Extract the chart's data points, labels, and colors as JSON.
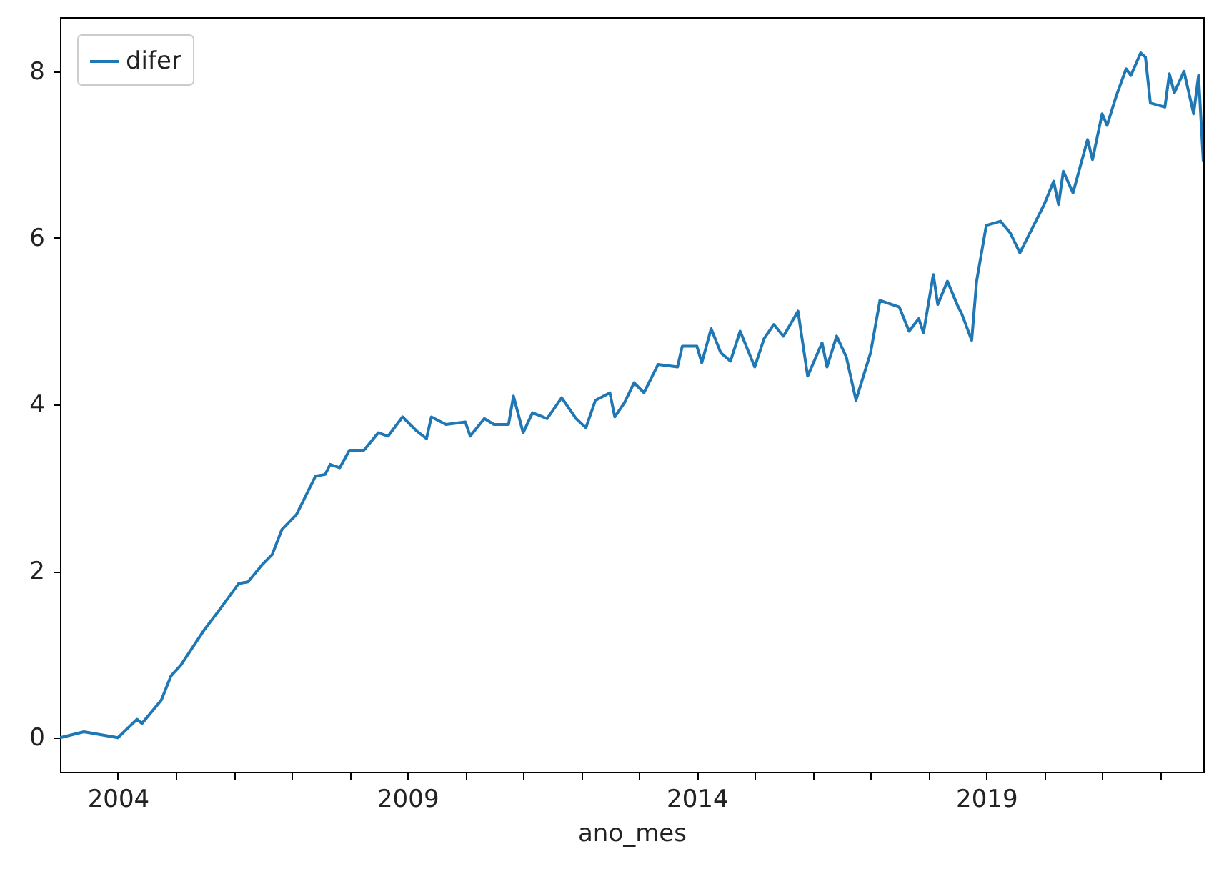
{
  "chart_data": {
    "type": "line",
    "xlabel": "ano_mes",
    "legend": "top left",
    "grid": false,
    "xlim": [
      "2003-01",
      "2022-10"
    ],
    "ylim": [
      -0.41,
      8.65
    ],
    "xticks": [
      {
        "value": "2004-01",
        "label": "2004"
      },
      {
        "value": "2005-01",
        "label": null
      },
      {
        "value": "2006-01",
        "label": null
      },
      {
        "value": "2007-01",
        "label": null
      },
      {
        "value": "2008-01",
        "label": null
      },
      {
        "value": "2009-01",
        "label": "2009"
      },
      {
        "value": "2010-01",
        "label": null
      },
      {
        "value": "2011-01",
        "label": null
      },
      {
        "value": "2012-01",
        "label": null
      },
      {
        "value": "2013-01",
        "label": null
      },
      {
        "value": "2014-01",
        "label": "2014"
      },
      {
        "value": "2015-01",
        "label": null
      },
      {
        "value": "2016-01",
        "label": null
      },
      {
        "value": "2017-01",
        "label": null
      },
      {
        "value": "2018-01",
        "label": null
      },
      {
        "value": "2019-01",
        "label": "2019"
      },
      {
        "value": "2020-01",
        "label": null
      },
      {
        "value": "2021-01",
        "label": null
      },
      {
        "value": "2022-01",
        "label": null
      }
    ],
    "yticks": [
      0,
      2,
      4,
      6,
      8
    ],
    "x": [
      "2003-01",
      "2003-06",
      "2004-01",
      "2004-05",
      "2004-06",
      "2004-10",
      "2004-12",
      "2005-02",
      "2005-07",
      "2005-10",
      "2006-02",
      "2006-04",
      "2006-07",
      "2006-09",
      "2006-11",
      "2007-02",
      "2007-06",
      "2007-08",
      "2007-09",
      "2007-11",
      "2008-01",
      "2008-04",
      "2008-07",
      "2008-09",
      "2008-12",
      "2009-03",
      "2009-05",
      "2009-06",
      "2009-09",
      "2010-01",
      "2010-02",
      "2010-05",
      "2010-07",
      "2010-10",
      "2010-11",
      "2011-01",
      "2011-03",
      "2011-06",
      "2011-09",
      "2011-12",
      "2012-02",
      "2012-04",
      "2012-07",
      "2012-08",
      "2012-10",
      "2012-12",
      "2013-02",
      "2013-05",
      "2013-09",
      "2013-10",
      "2014-01",
      "2014-02",
      "2014-04",
      "2014-06",
      "2014-08",
      "2014-10",
      "2015-01",
      "2015-03",
      "2015-05",
      "2015-07",
      "2015-10",
      "2015-12",
      "2016-03",
      "2016-04",
      "2016-06",
      "2016-08",
      "2016-10",
      "2017-01",
      "2017-03",
      "2017-07",
      "2017-09",
      "2017-11",
      "2017-12",
      "2018-02",
      "2018-03",
      "2018-05",
      "2018-07",
      "2018-08",
      "2018-10",
      "2018-11",
      "2019-01",
      "2019-04",
      "2019-06",
      "2019-08",
      "2020-01",
      "2020-03",
      "2020-04",
      "2020-05",
      "2020-07",
      "2020-10",
      "2020-11",
      "2021-01",
      "2021-02",
      "2021-04",
      "2021-06",
      "2021-07",
      "2021-09",
      "2021-10",
      "2021-11",
      "2022-02",
      "2022-03",
      "2022-04",
      "2022-06",
      "2022-08",
      "2022-09",
      "2022-10"
    ],
    "series": [
      {
        "name": "difer",
        "color": "#1f77b4",
        "values": [
          0.0,
          0.07,
          0.0,
          0.22,
          0.17,
          0.45,
          0.74,
          0.87,
          1.3,
          1.53,
          1.85,
          1.87,
          2.08,
          2.2,
          2.5,
          2.68,
          3.14,
          3.16,
          3.28,
          3.24,
          3.45,
          3.45,
          3.66,
          3.62,
          3.85,
          3.68,
          3.59,
          3.85,
          3.76,
          3.79,
          3.62,
          3.83,
          3.76,
          3.76,
          4.1,
          3.66,
          3.9,
          3.83,
          4.08,
          3.83,
          3.72,
          4.05,
          4.14,
          3.85,
          4.02,
          4.26,
          4.14,
          4.48,
          4.45,
          4.7,
          4.7,
          4.5,
          4.91,
          4.62,
          4.52,
          4.88,
          4.45,
          4.79,
          4.96,
          4.82,
          5.12,
          4.34,
          4.74,
          4.45,
          4.82,
          4.57,
          4.05,
          4.62,
          5.25,
          5.17,
          4.88,
          5.03,
          4.86,
          5.56,
          5.2,
          5.48,
          5.2,
          5.08,
          4.77,
          5.48,
          6.15,
          6.2,
          6.06,
          5.82,
          6.4,
          6.68,
          6.4,
          6.8,
          6.54,
          7.18,
          6.94,
          7.49,
          7.35,
          7.71,
          8.03,
          7.95,
          8.22,
          8.17,
          7.62,
          7.57,
          7.97,
          7.74,
          8.0,
          7.49,
          7.95,
          6.92
        ]
      }
    ]
  }
}
